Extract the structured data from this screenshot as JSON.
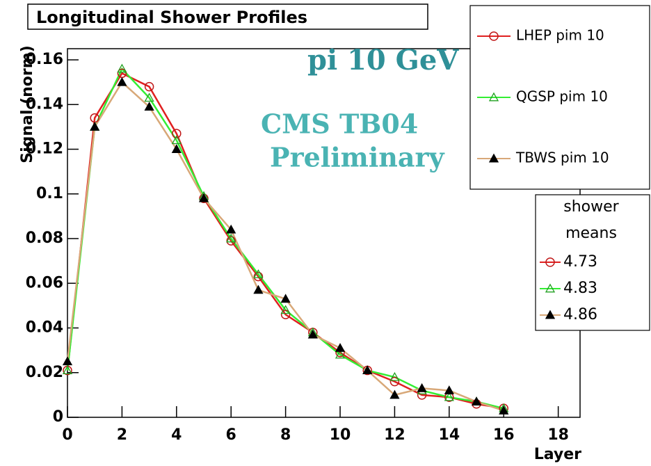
{
  "chart_data": {
    "type": "line",
    "title": "Longitudinal Shower Profiles",
    "x_label": "Layer",
    "y_label": "Signal (norm)",
    "annotations": [
      "pi 10 GeV",
      "CMS TB04",
      "Preliminary"
    ],
    "x": [
      0,
      1,
      2,
      3,
      4,
      5,
      6,
      7,
      8,
      9,
      10,
      11,
      12,
      13,
      14,
      15,
      16
    ],
    "series": [
      {
        "name": "LHEP pim 10",
        "color": "#e02020",
        "marker": "circle-open",
        "marker_color": "#c01818",
        "values": [
          0.021,
          0.134,
          0.154,
          0.148,
          0.127,
          0.098,
          0.079,
          0.063,
          0.046,
          0.038,
          0.029,
          0.021,
          0.016,
          0.01,
          0.009,
          0.006,
          0.004
        ]
      },
      {
        "name": "QGSP pim 10",
        "color": "#33ee33",
        "marker": "triangle-open",
        "marker_color": "#20a020",
        "values": [
          0.021,
          0.13,
          0.156,
          0.143,
          0.124,
          0.099,
          0.08,
          0.064,
          0.048,
          0.038,
          0.028,
          0.021,
          0.018,
          0.012,
          0.009,
          0.007,
          0.004
        ]
      },
      {
        "name": "TBWS pim 10",
        "color": "#d8a878",
        "marker": "triangle-filled",
        "marker_color": "#000000",
        "values": [
          0.025,
          0.13,
          0.15,
          0.139,
          0.12,
          0.098,
          0.084,
          0.057,
          0.053,
          0.037,
          0.031,
          0.021,
          0.01,
          0.013,
          0.012,
          0.007,
          0.003
        ]
      }
    ],
    "shower_means": {
      "title": [
        "shower",
        "means"
      ],
      "values": [
        4.73,
        4.83,
        4.86
      ]
    },
    "xlim": [
      0,
      18.8
    ],
    "ylim": [
      0,
      0.165
    ],
    "xticks": [
      0,
      2,
      4,
      6,
      8,
      10,
      12,
      14,
      16,
      18
    ],
    "yticks": [
      0,
      0.02,
      0.04,
      0.06,
      0.08,
      0.1,
      0.12,
      0.14,
      0.16
    ]
  }
}
